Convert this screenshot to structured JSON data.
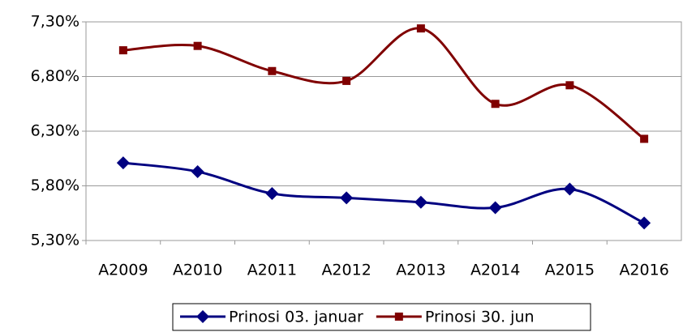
{
  "chart_data": {
    "type": "line",
    "categories": [
      "A2009",
      "A2010",
      "A2011",
      "A2012",
      "A2013",
      "A2014",
      "A2015",
      "A2016"
    ],
    "series": [
      {
        "name": "Prinosi 03. januar",
        "color": "#000080",
        "marker": "diamond",
        "values": [
          6.01,
          5.93,
          5.73,
          5.69,
          5.65,
          5.6,
          5.77,
          5.46
        ]
      },
      {
        "name": "Prinosi 30. jun",
        "color": "#800000",
        "marker": "square",
        "values": [
          7.04,
          7.08,
          6.85,
          6.76,
          7.24,
          6.55,
          6.72,
          6.23
        ]
      }
    ],
    "ylim": [
      5.3,
      7.3
    ],
    "yticks": [
      {
        "value": 5.3,
        "label": "5,30%"
      },
      {
        "value": 5.8,
        "label": "5,80%"
      },
      {
        "value": 6.3,
        "label": "6,30%"
      },
      {
        "value": 6.8,
        "label": "6,80%"
      },
      {
        "value": 7.3,
        "label": "7,30%"
      }
    ],
    "grid": true,
    "smooth": true,
    "legend": "bottom"
  }
}
